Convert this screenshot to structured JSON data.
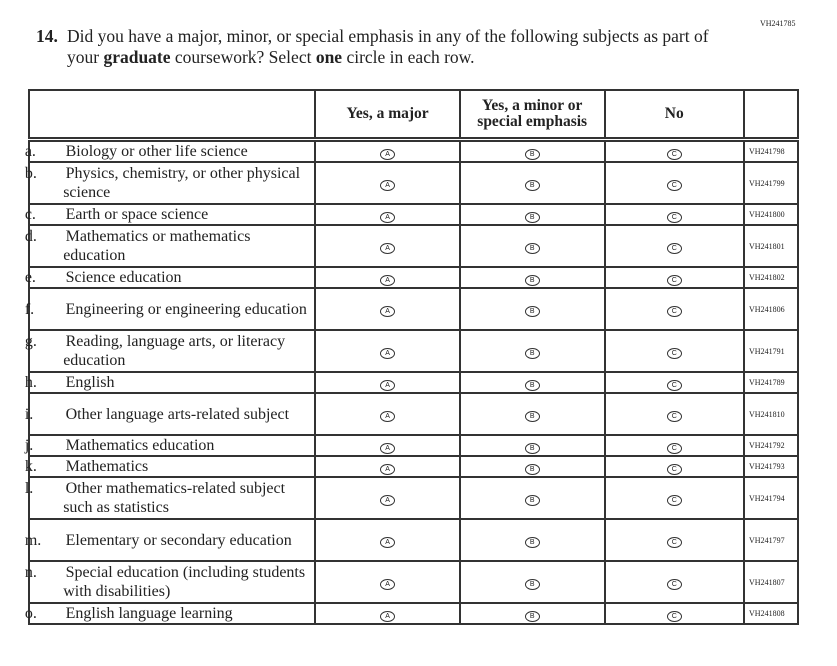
{
  "page_code": "VH241785",
  "question": {
    "number": "14.",
    "text_before": "Did you have a major, minor, or special emphasis in any of the following subjects as part of your ",
    "bold1": "graduate",
    "text_mid": " coursework? Select ",
    "bold2": "one",
    "text_after": " circle in each row."
  },
  "columns": [
    "Yes, a major",
    "Yes, a minor or special emphasis",
    "No"
  ],
  "bubbles": [
    "A",
    "B",
    "C"
  ],
  "rows": [
    {
      "letter": "a.",
      "label": "Biology or other life science",
      "code": "VH241798"
    },
    {
      "letter": "b.",
      "label": "Physics, chemistry, or other physical science",
      "code": "VH241799"
    },
    {
      "letter": "c.",
      "label": "Earth or space science",
      "code": "VH241800"
    },
    {
      "letter": "d.",
      "label": "Mathematics or mathematics education",
      "code": "VH241801"
    },
    {
      "letter": "e.",
      "label": "Science education",
      "code": "VH241802"
    },
    {
      "letter": "f.",
      "label": "Engineering or engineering education",
      "code": "VH241806"
    },
    {
      "letter": "g.",
      "label": "Reading, language arts, or literacy education",
      "code": "VH241791"
    },
    {
      "letter": "h.",
      "label": "English",
      "code": "VH241789"
    },
    {
      "letter": "i.",
      "label": "Other language arts-related subject",
      "code": "VH241810"
    },
    {
      "letter": "j.",
      "label": "Mathematics education",
      "code": "VH241792"
    },
    {
      "letter": "k.",
      "label": "Mathematics",
      "code": "VH241793"
    },
    {
      "letter": "l.",
      "label": "Other mathematics-related subject such as statistics",
      "code": "VH241794"
    },
    {
      "letter": "m.",
      "label": "Elementary or secondary education",
      "code": "VH241797"
    },
    {
      "letter": "n.",
      "label": "Special education (including students with disabilities)",
      "code": "VH241807"
    },
    {
      "letter": "o.",
      "label": "English language learning",
      "code": "VH241808"
    }
  ]
}
